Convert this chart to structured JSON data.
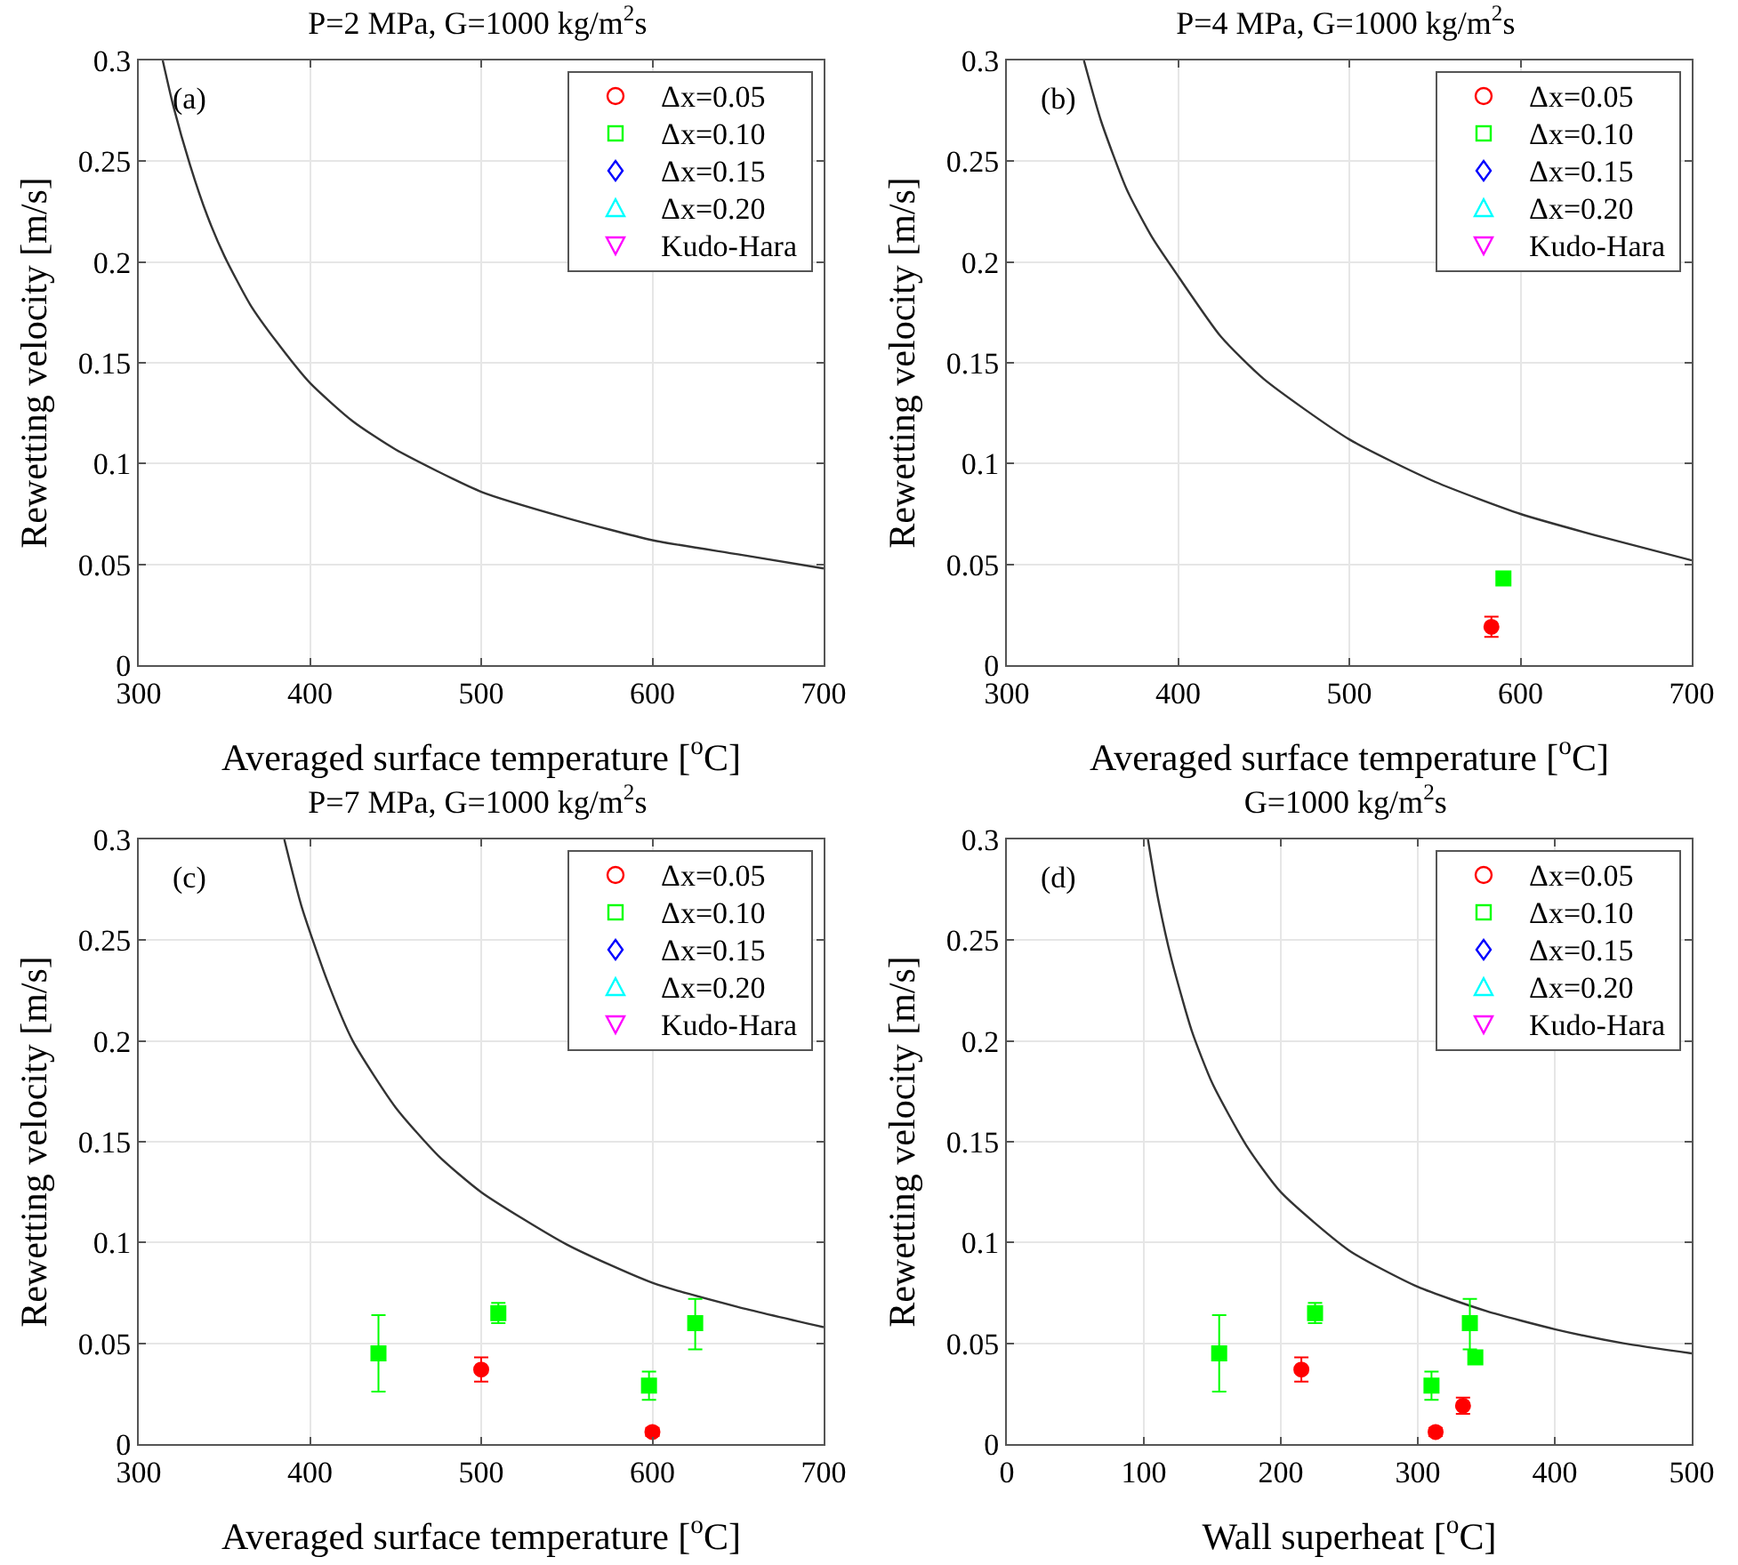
{
  "chart_data": [
    {
      "type": "scatter",
      "title": "P=2 MPa, G=1000 kg/m$^{2}$s",
      "xlabel": "Averaged surface temperature [$^{o}$C]",
      "ylabel": "Rewetting velocity [m/s]",
      "annotations": [
        "(a)"
      ],
      "xlim": [
        300,
        700
      ],
      "xticks": [
        300,
        400,
        500,
        600,
        700
      ],
      "ylim": [
        0,
        0.3
      ],
      "yticks": [
        0,
        0.05,
        0.1,
        0.15,
        0.2,
        0.25,
        0.3
      ],
      "grid": true,
      "legend": "top right",
      "series": [
        {
          "type": "line",
          "color": "#333333",
          "line_style": "solid",
          "marker": "none",
          "x": [
            314,
            320,
            330,
            340,
            350,
            365,
            380,
            400,
            425,
            450,
            500,
            550,
            600,
            650,
            700
          ],
          "values": [
            0.3,
            0.278,
            0.248,
            0.223,
            0.203,
            0.179,
            0.161,
            0.14,
            0.121,
            0.107,
            0.086,
            0.073,
            0.062,
            0.055,
            0.048
          ]
        },
        {
          "name": "Δx=0.05",
          "color": "#ff0000",
          "marker": "circle"
        },
        {
          "name": "Δx=0.10",
          "color": "#00ff00",
          "marker": "square"
        },
        {
          "name": "Δx=0.15",
          "color": "#0000ff",
          "marker": "diamond"
        },
        {
          "name": "Δx=0.20",
          "color": "#00ffff",
          "marker": "triangle"
        },
        {
          "name": "Kudo-Hara",
          "color": "#ff00ff",
          "marker": "triangle-down"
        }
      ]
    },
    {
      "type": "scatter",
      "title": "P=4 MPa, G=1000 kg/m$^{2}$s",
      "xlabel": "Averaged surface temperature [$^{o}$C]",
      "ylabel": "Rewetting velocity [m/s]",
      "annotations": [
        "(b)"
      ],
      "xlim": [
        300,
        700
      ],
      "xticks": [
        300,
        400,
        500,
        600,
        700
      ],
      "ylim": [
        0,
        0.3
      ],
      "yticks": [
        0,
        0.05,
        0.1,
        0.15,
        0.2,
        0.25,
        0.3
      ],
      "grid": true,
      "legend": "top right",
      "series": [
        {
          "type": "line",
          "color": "#333333",
          "line_style": "solid",
          "marker": "none",
          "x": [
            345,
            355,
            370,
            385,
            400,
            425,
            450,
            500,
            550,
            600,
            650,
            700
          ],
          "values": [
            0.3,
            0.27,
            0.236,
            0.212,
            0.193,
            0.163,
            0.142,
            0.112,
            0.091,
            0.075,
            0.063,
            0.052
          ]
        },
        {
          "name": "Δx=0.05",
          "color": "#ff0000",
          "marker": "circle",
          "x": [
            583
          ],
          "values": [
            0.019
          ],
          "errors": [
            0.005
          ]
        },
        {
          "name": "Δx=0.10",
          "color": "#00ff00",
          "marker": "square",
          "x": [
            590
          ],
          "values": [
            0.043
          ],
          "errors": [
            0.002
          ]
        },
        {
          "name": "Δx=0.15",
          "color": "#0000ff",
          "marker": "diamond"
        },
        {
          "name": "Δx=0.20",
          "color": "#00ffff",
          "marker": "triangle"
        },
        {
          "name": "Kudo-Hara",
          "color": "#ff00ff",
          "marker": "triangle-down"
        }
      ]
    },
    {
      "type": "scatter",
      "title": "P=7 MPa, G=1000 kg/m$^{2}$s",
      "xlabel": "Averaged surface temperature [$^{o}$C]",
      "ylabel": "Rewetting velocity [m/s]",
      "annotations": [
        "(c)"
      ],
      "xlim": [
        300,
        700
      ],
      "xticks": [
        300,
        400,
        500,
        600,
        700
      ],
      "ylim": [
        0,
        0.3
      ],
      "yticks": [
        0,
        0.05,
        0.1,
        0.15,
        0.2,
        0.25,
        0.3
      ],
      "grid": true,
      "legend": "top right",
      "series": [
        {
          "type": "line",
          "color": "#333333",
          "line_style": "solid",
          "marker": "none",
          "x": [
            385,
            395,
            410,
            425,
            450,
            475,
            500,
            550,
            600,
            650,
            700
          ],
          "values": [
            0.3,
            0.267,
            0.23,
            0.2,
            0.167,
            0.143,
            0.125,
            0.099,
            0.08,
            0.068,
            0.058
          ]
        },
        {
          "name": "Δx=0.05",
          "color": "#ff0000",
          "marker": "circle",
          "x": [
            500,
            600
          ],
          "values": [
            0.037,
            0.006
          ],
          "errors": [
            0.006,
            0.002
          ]
        },
        {
          "name": "Δx=0.10",
          "color": "#00ff00",
          "marker": "square",
          "x": [
            440,
            510,
            598,
            625
          ],
          "values": [
            0.045,
            0.065,
            0.029,
            0.06
          ],
          "errors": [
            [
              0.026,
              0.064
            ],
            0.005,
            0.007,
            [
              0.047,
              0.072
            ]
          ]
        },
        {
          "name": "Δx=0.15",
          "color": "#0000ff",
          "marker": "diamond"
        },
        {
          "name": "Δx=0.20",
          "color": "#00ffff",
          "marker": "triangle"
        },
        {
          "name": "Kudo-Hara",
          "color": "#ff00ff",
          "marker": "triangle-down"
        }
      ]
    },
    {
      "type": "scatter",
      "title": "G=1000 kg/m$^{2}$s",
      "xlabel": "Wall superheat [$^{o}$C]",
      "ylabel": "Rewetting velocity [m/s]",
      "annotations": [
        "(d)"
      ],
      "xlim": [
        0,
        500
      ],
      "xticks": [
        0,
        100,
        200,
        300,
        400,
        500
      ],
      "ylim": [
        0,
        0.3
      ],
      "yticks": [
        0,
        0.05,
        0.1,
        0.15,
        0.2,
        0.25,
        0.3
      ],
      "grid": true,
      "legend": "top right",
      "series": [
        {
          "type": "line",
          "color": "#333333",
          "line_style": "solid",
          "marker": "none",
          "x": [
            103,
            110,
            120,
            135,
            150,
            175,
            200,
            250,
            300,
            350,
            400,
            450,
            500
          ],
          "values": [
            0.3,
            0.272,
            0.241,
            0.205,
            0.179,
            0.148,
            0.125,
            0.096,
            0.078,
            0.066,
            0.057,
            0.05,
            0.045
          ]
        },
        {
          "name": "Δx=0.05",
          "color": "#ff0000",
          "marker": "circle",
          "x": [
            215,
            313,
            333
          ],
          "values": [
            0.037,
            0.006,
            0.019
          ],
          "errors": [
            0.006,
            0.002,
            0.004
          ]
        },
        {
          "name": "Δx=0.10",
          "color": "#00ff00",
          "marker": "square",
          "x": [
            155,
            225,
            310,
            338,
            342
          ],
          "values": [
            0.045,
            0.065,
            0.029,
            0.06,
            0.043
          ],
          "errors": [
            [
              0.026,
              0.064
            ],
            0.005,
            0.007,
            [
              0.047,
              0.072
            ],
            0.002
          ]
        },
        {
          "name": "Δx=0.15",
          "color": "#0000ff",
          "marker": "diamond"
        },
        {
          "name": "Δx=0.20",
          "color": "#00ffff",
          "marker": "triangle"
        },
        {
          "name": "Kudo-Hara",
          "color": "#ff00ff",
          "marker": "triangle-down"
        }
      ]
    }
  ]
}
